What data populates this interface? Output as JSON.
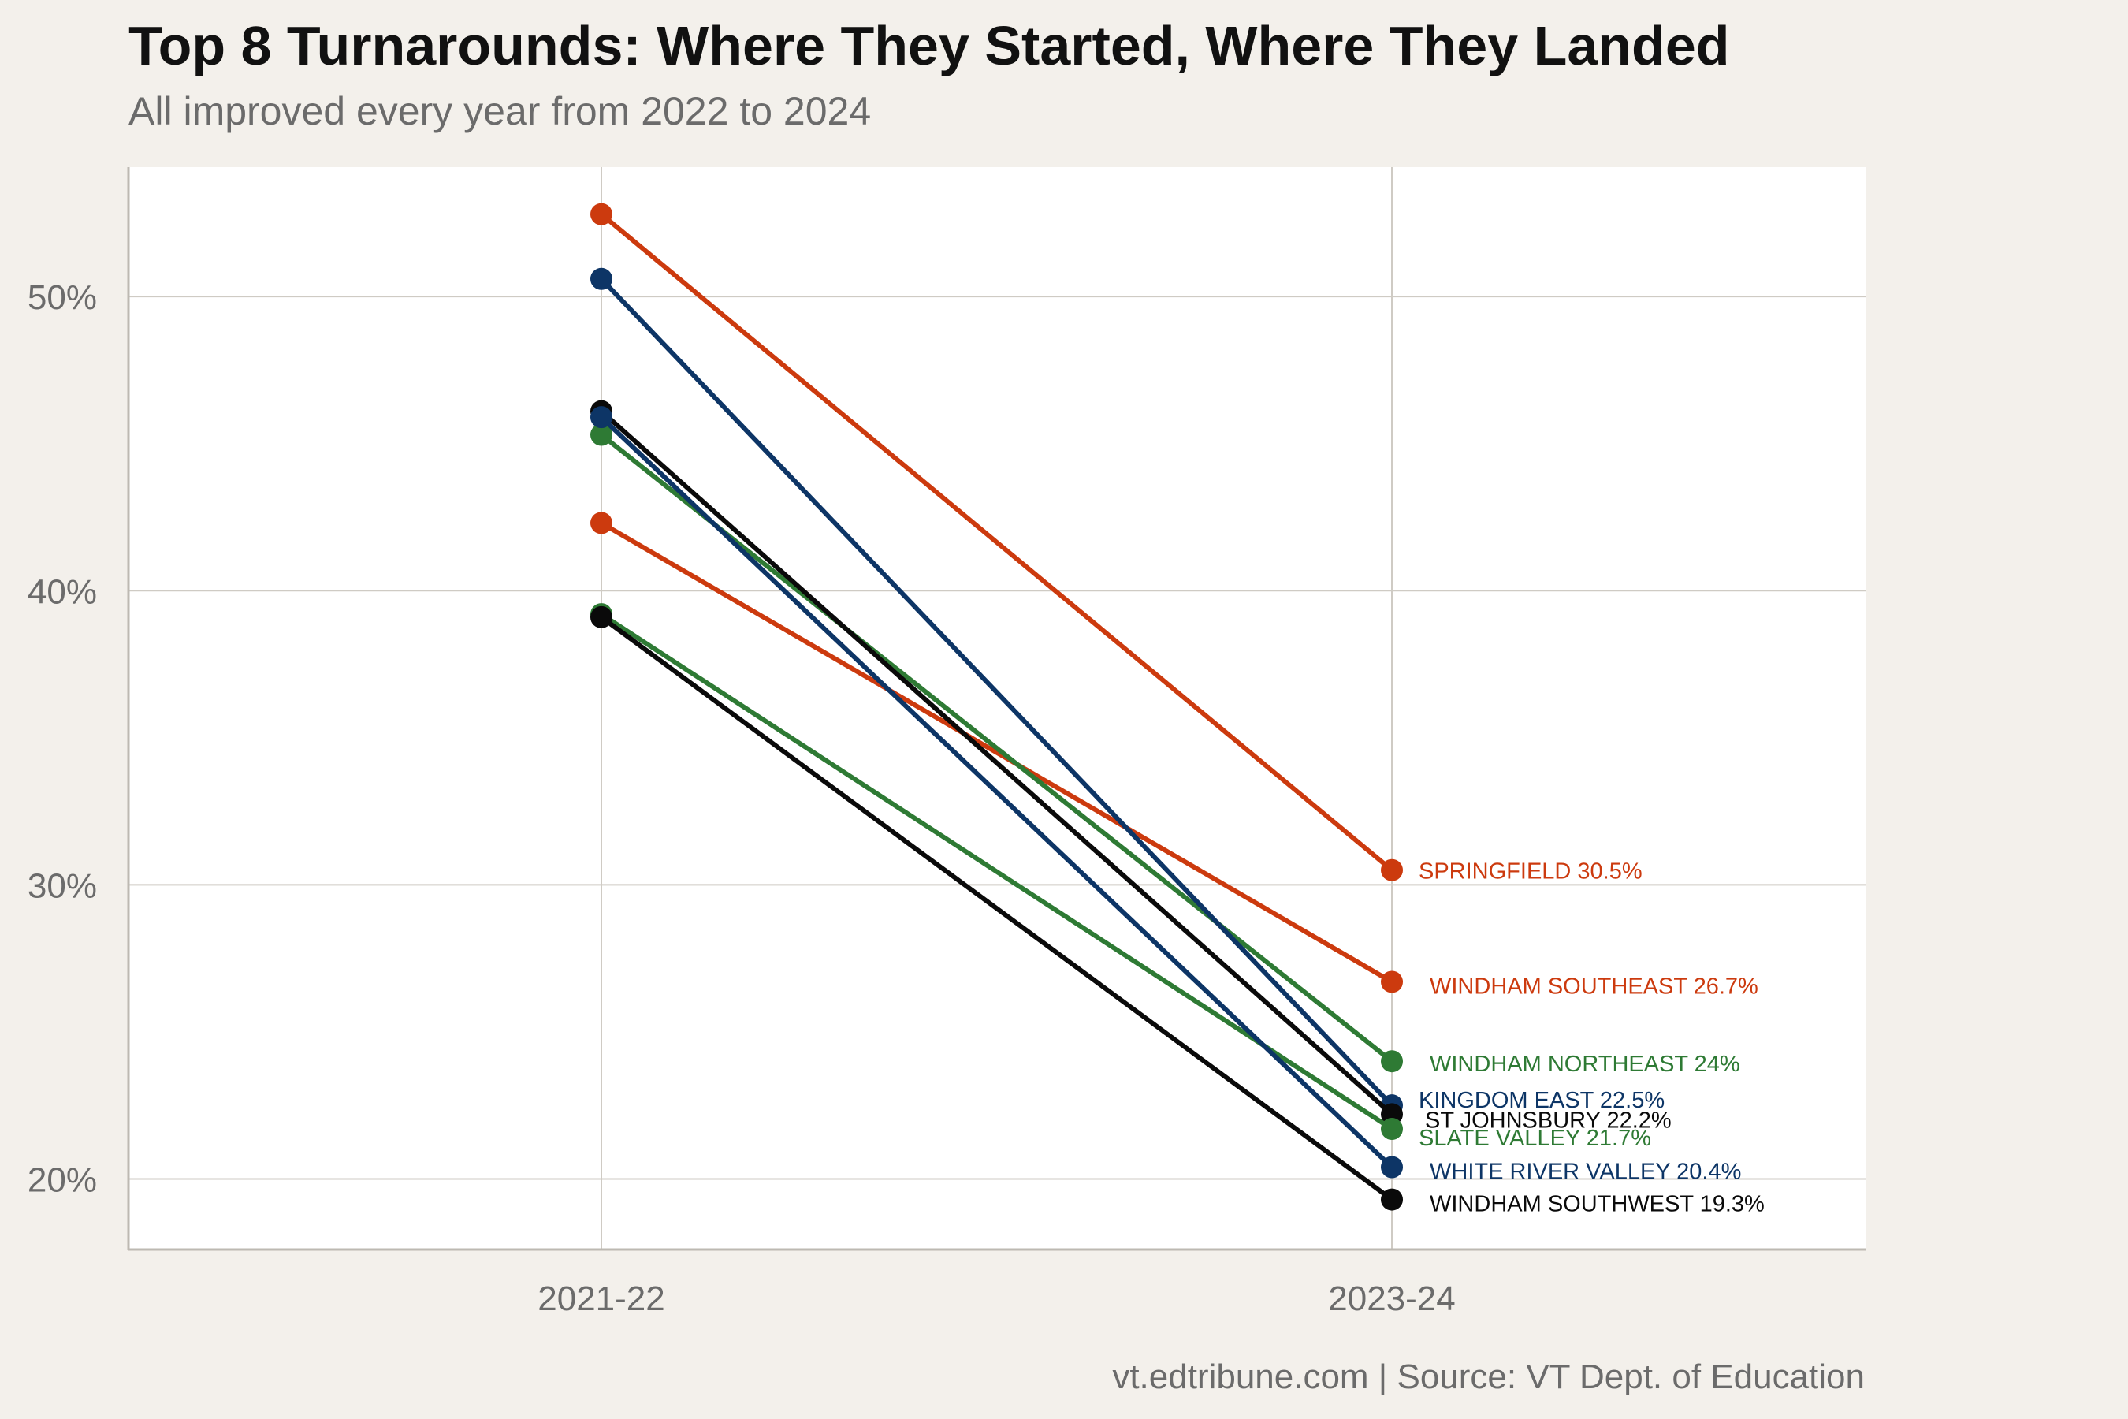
{
  "title": "Top 8 Turnarounds: Where They Started, Where They Landed",
  "subtitle": "All improved every year from 2022 to 2024",
  "caption": "vt.edtribune.com | Source: VT Dept. of Education",
  "chart_data": {
    "type": "line",
    "title": "Top 8 Turnarounds: Where They Started, Where They Landed",
    "subtitle": "All improved every year from 2022 to 2024",
    "categories": [
      "2021-22",
      "2023-24"
    ],
    "ylim": [
      17.6,
      54.4
    ],
    "yticks": [
      20,
      30,
      40,
      50
    ],
    "ytick_labels": [
      "20%",
      "30%",
      "40%",
      "50%"
    ],
    "grid": true,
    "legend": "none",
    "series": [
      {
        "name": "SPRINGFIELD",
        "values": [
          52.8,
          30.5
        ],
        "color": "#cc3a0e",
        "label": "SPRINGFIELD 30.5%"
      },
      {
        "name": "WINDHAM SOUTHEAST",
        "values": [
          42.3,
          26.7
        ],
        "color": "#cc3a0e",
        "label": "WINDHAM SOUTHEAST 26.7%"
      },
      {
        "name": "WINDHAM NORTHEAST",
        "values": [
          45.3,
          24.0
        ],
        "color": "#2e7a34",
        "label": "WINDHAM NORTHEAST 24%"
      },
      {
        "name": "KINGDOM EAST",
        "values": [
          50.6,
          22.5
        ],
        "color": "#0d3566",
        "label": "KINGDOM EAST 22.5%"
      },
      {
        "name": "ST JOHNSBURY",
        "values": [
          46.1,
          22.2
        ],
        "color": "#0a0a0a",
        "label": "ST JOHNSBURY 22.2%"
      },
      {
        "name": "SLATE VALLEY",
        "values": [
          39.2,
          21.7
        ],
        "color": "#2e7a34",
        "label": "SLATE VALLEY 21.7%"
      },
      {
        "name": "WHITE RIVER VALLEY",
        "values": [
          45.9,
          20.4
        ],
        "color": "#0d3566",
        "label": "WHITE RIVER VALLEY 20.4%"
      },
      {
        "name": "WINDHAM SOUTHWEST",
        "values": [
          39.1,
          19.3
        ],
        "color": "#0a0a0a",
        "label": "WINDHAM SOUTHWEST 19.3%"
      }
    ]
  }
}
